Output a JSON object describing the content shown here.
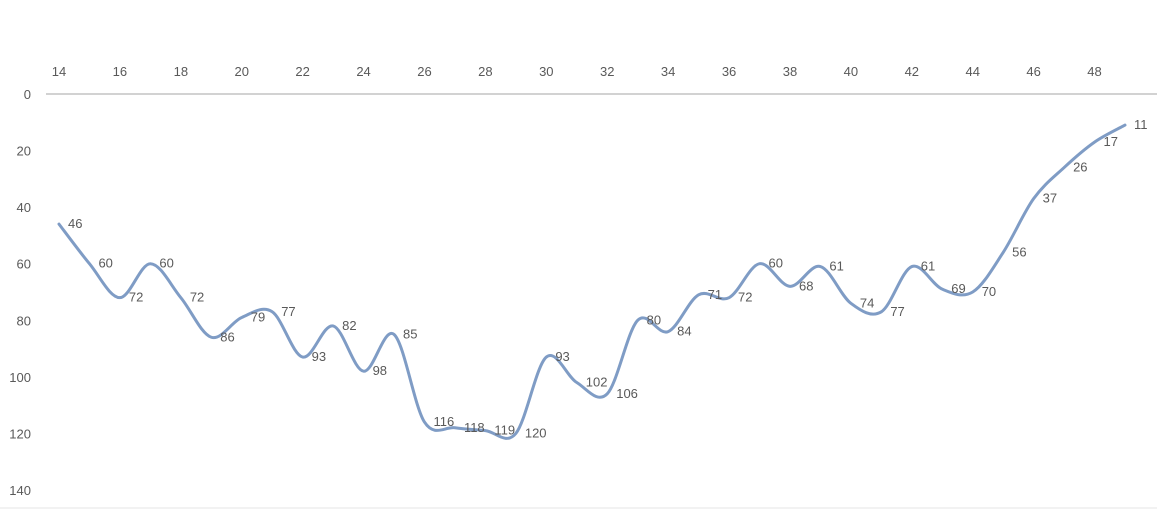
{
  "chart_data": {
    "type": "line",
    "title": "",
    "xlabel": "",
    "ylabel": "",
    "x_axis_position": "top",
    "y_axis_reversed": true,
    "smooth": true,
    "grid": false,
    "legend": "none",
    "xlim": [
      14,
      49
    ],
    "ylim": [
      0,
      140
    ],
    "x_ticks": [
      14,
      16,
      18,
      20,
      22,
      24,
      26,
      28,
      30,
      32,
      34,
      36,
      38,
      40,
      42,
      44,
      46,
      48
    ],
    "y_ticks": [
      0,
      20,
      40,
      60,
      80,
      100,
      120,
      140
    ],
    "line_color": "#7f9cc5",
    "axis_color": "#a6a6a6",
    "label_color": "#595959",
    "series": [
      {
        "x": [
          14,
          15,
          16,
          17,
          18,
          19,
          20,
          21,
          22,
          23,
          24,
          25,
          26,
          27,
          28,
          29,
          30,
          31,
          32,
          33,
          34,
          35,
          36,
          37,
          38,
          39,
          40,
          41,
          42,
          43,
          44,
          45,
          46,
          47,
          48,
          49
        ],
        "values": [
          46,
          60,
          72,
          60,
          72,
          86,
          79,
          77,
          93,
          82,
          98,
          85,
          116,
          118,
          119,
          120,
          93,
          102,
          106,
          80,
          84,
          71,
          72,
          60,
          68,
          61,
          74,
          77,
          61,
          69,
          70,
          56,
          37,
          26,
          17,
          11
        ]
      }
    ]
  }
}
